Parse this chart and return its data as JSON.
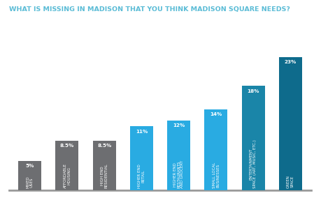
{
  "title": "WHAT IS MISSING IN MADISON THAT YOU THINK MADISON SQUARE NEEDS?",
  "categories": [
    "MIXED\nUSES",
    "AFFORDABLE\nHOUSING",
    "HIGH END\nRESIDENTIAL",
    "HIGHER END\nRETAIL",
    "HIGHER END\nRESTAURANTS\nAND GROCERY",
    "SMALL LOCAL\nBUSINESSES",
    "ENTERTAINMENT\nSPACE (ART, MUSIC, ETC.)",
    "GREEN\nSPACE"
  ],
  "values": [
    5,
    8.5,
    8.5,
    11,
    12,
    14,
    18,
    23
  ],
  "bar_colors": [
    "#6d6e71",
    "#6d6e71",
    "#6d6e71",
    "#29abe2",
    "#29abe2",
    "#29abe2",
    "#1a85a8",
    "#0e6b8c"
  ],
  "value_labels": [
    "5%",
    "8.5%",
    "8.5%",
    "11%",
    "12%",
    "14%",
    "18%",
    "23%"
  ],
  "title_color": "#5bbcd6",
  "title_fontsize": 6.8,
  "label_fontsize": 4.0,
  "value_fontsize": 5.2,
  "background_color": "#ffffff",
  "ylim": [
    0,
    27
  ]
}
